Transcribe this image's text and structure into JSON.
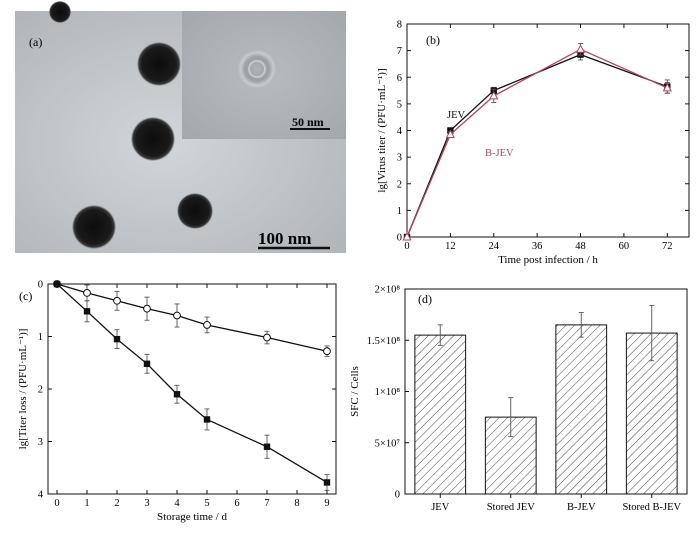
{
  "panels": {
    "a": {
      "label": "(a)",
      "scale_main": "100 nm",
      "scale_inset": "50 nm"
    },
    "b": {
      "label": "(b)"
    },
    "c": {
      "label": "(c)"
    },
    "d": {
      "label": "(d)"
    }
  },
  "chart_data": [
    {
      "id": "b",
      "type": "line",
      "xlabel": "Time post infection / h",
      "ylabel": "lg[Virus titer / (PFU·mL⁻¹)]",
      "xlim": [
        0,
        78
      ],
      "ylim": [
        0,
        8
      ],
      "xticks": [
        0,
        12,
        24,
        36,
        48,
        60,
        72
      ],
      "yticks": [
        0,
        1,
        2,
        3,
        4,
        5,
        6,
        7,
        8
      ],
      "grid": false,
      "series": [
        {
          "name": "JEV",
          "color": "#111111",
          "marker": "filled-square",
          "x": [
            0,
            12,
            24,
            48,
            72
          ],
          "y": [
            0,
            4.0,
            5.5,
            6.85,
            5.65
          ],
          "err": [
            0.05,
            0.1,
            0.12,
            0.2,
            0.25
          ]
        },
        {
          "name": "B-JEV",
          "color": "#b0445a",
          "marker": "open-triangle",
          "x": [
            0,
            12,
            24,
            48,
            72
          ],
          "y": [
            0,
            3.85,
            5.3,
            7.05,
            5.6
          ],
          "err": [
            0.05,
            0.1,
            0.25,
            0.22,
            0.2
          ]
        }
      ]
    },
    {
      "id": "c",
      "type": "line",
      "xlabel": "Storage time / d",
      "ylabel": "lg[Titer loss / (PFU·mL⁻¹)]",
      "xlim": [
        -0.3,
        9.3
      ],
      "ylim": [
        0,
        4
      ],
      "y_inverted": true,
      "xticks": [
        0,
        1,
        2,
        3,
        4,
        5,
        6,
        7,
        8,
        9
      ],
      "yticks": [
        0,
        1,
        2,
        3,
        4
      ],
      "grid": false,
      "series": [
        {
          "marker": "open-circle",
          "color": "#111111",
          "x": [
            0,
            1,
            2,
            3,
            4,
            5,
            7,
            9
          ],
          "y": [
            0,
            0.17,
            0.32,
            0.47,
            0.6,
            0.78,
            1.02,
            1.28
          ],
          "err": [
            0.02,
            0.15,
            0.18,
            0.22,
            0.22,
            0.15,
            0.12,
            0.1
          ]
        },
        {
          "marker": "filled-square",
          "color": "#111111",
          "x": [
            0,
            1,
            2,
            3,
            4,
            5,
            7,
            9
          ],
          "y": [
            0,
            0.52,
            1.05,
            1.52,
            2.1,
            2.58,
            3.1,
            3.78
          ],
          "err": [
            0.02,
            0.2,
            0.18,
            0.18,
            0.17,
            0.2,
            0.22,
            0.15
          ]
        }
      ]
    },
    {
      "id": "d",
      "type": "bar",
      "xlabel": "",
      "ylabel": "SFC / Cells",
      "ylim": [
        0,
        200000000
      ],
      "yticks": [
        0,
        50000000,
        100000000,
        150000000,
        200000000
      ],
      "ytick_labels": [
        "0",
        "5×10⁷",
        "1×10⁸",
        "1.5×10⁸",
        "2×10⁸"
      ],
      "categories": [
        "JEV",
        "Stored JEV",
        "B-JEV",
        "Stored B-JEV"
      ],
      "values": [
        155000000,
        75000000,
        165000000,
        157000000
      ],
      "err": [
        10000000,
        19000000,
        12000000,
        27000000
      ],
      "fill": "hatched"
    }
  ]
}
